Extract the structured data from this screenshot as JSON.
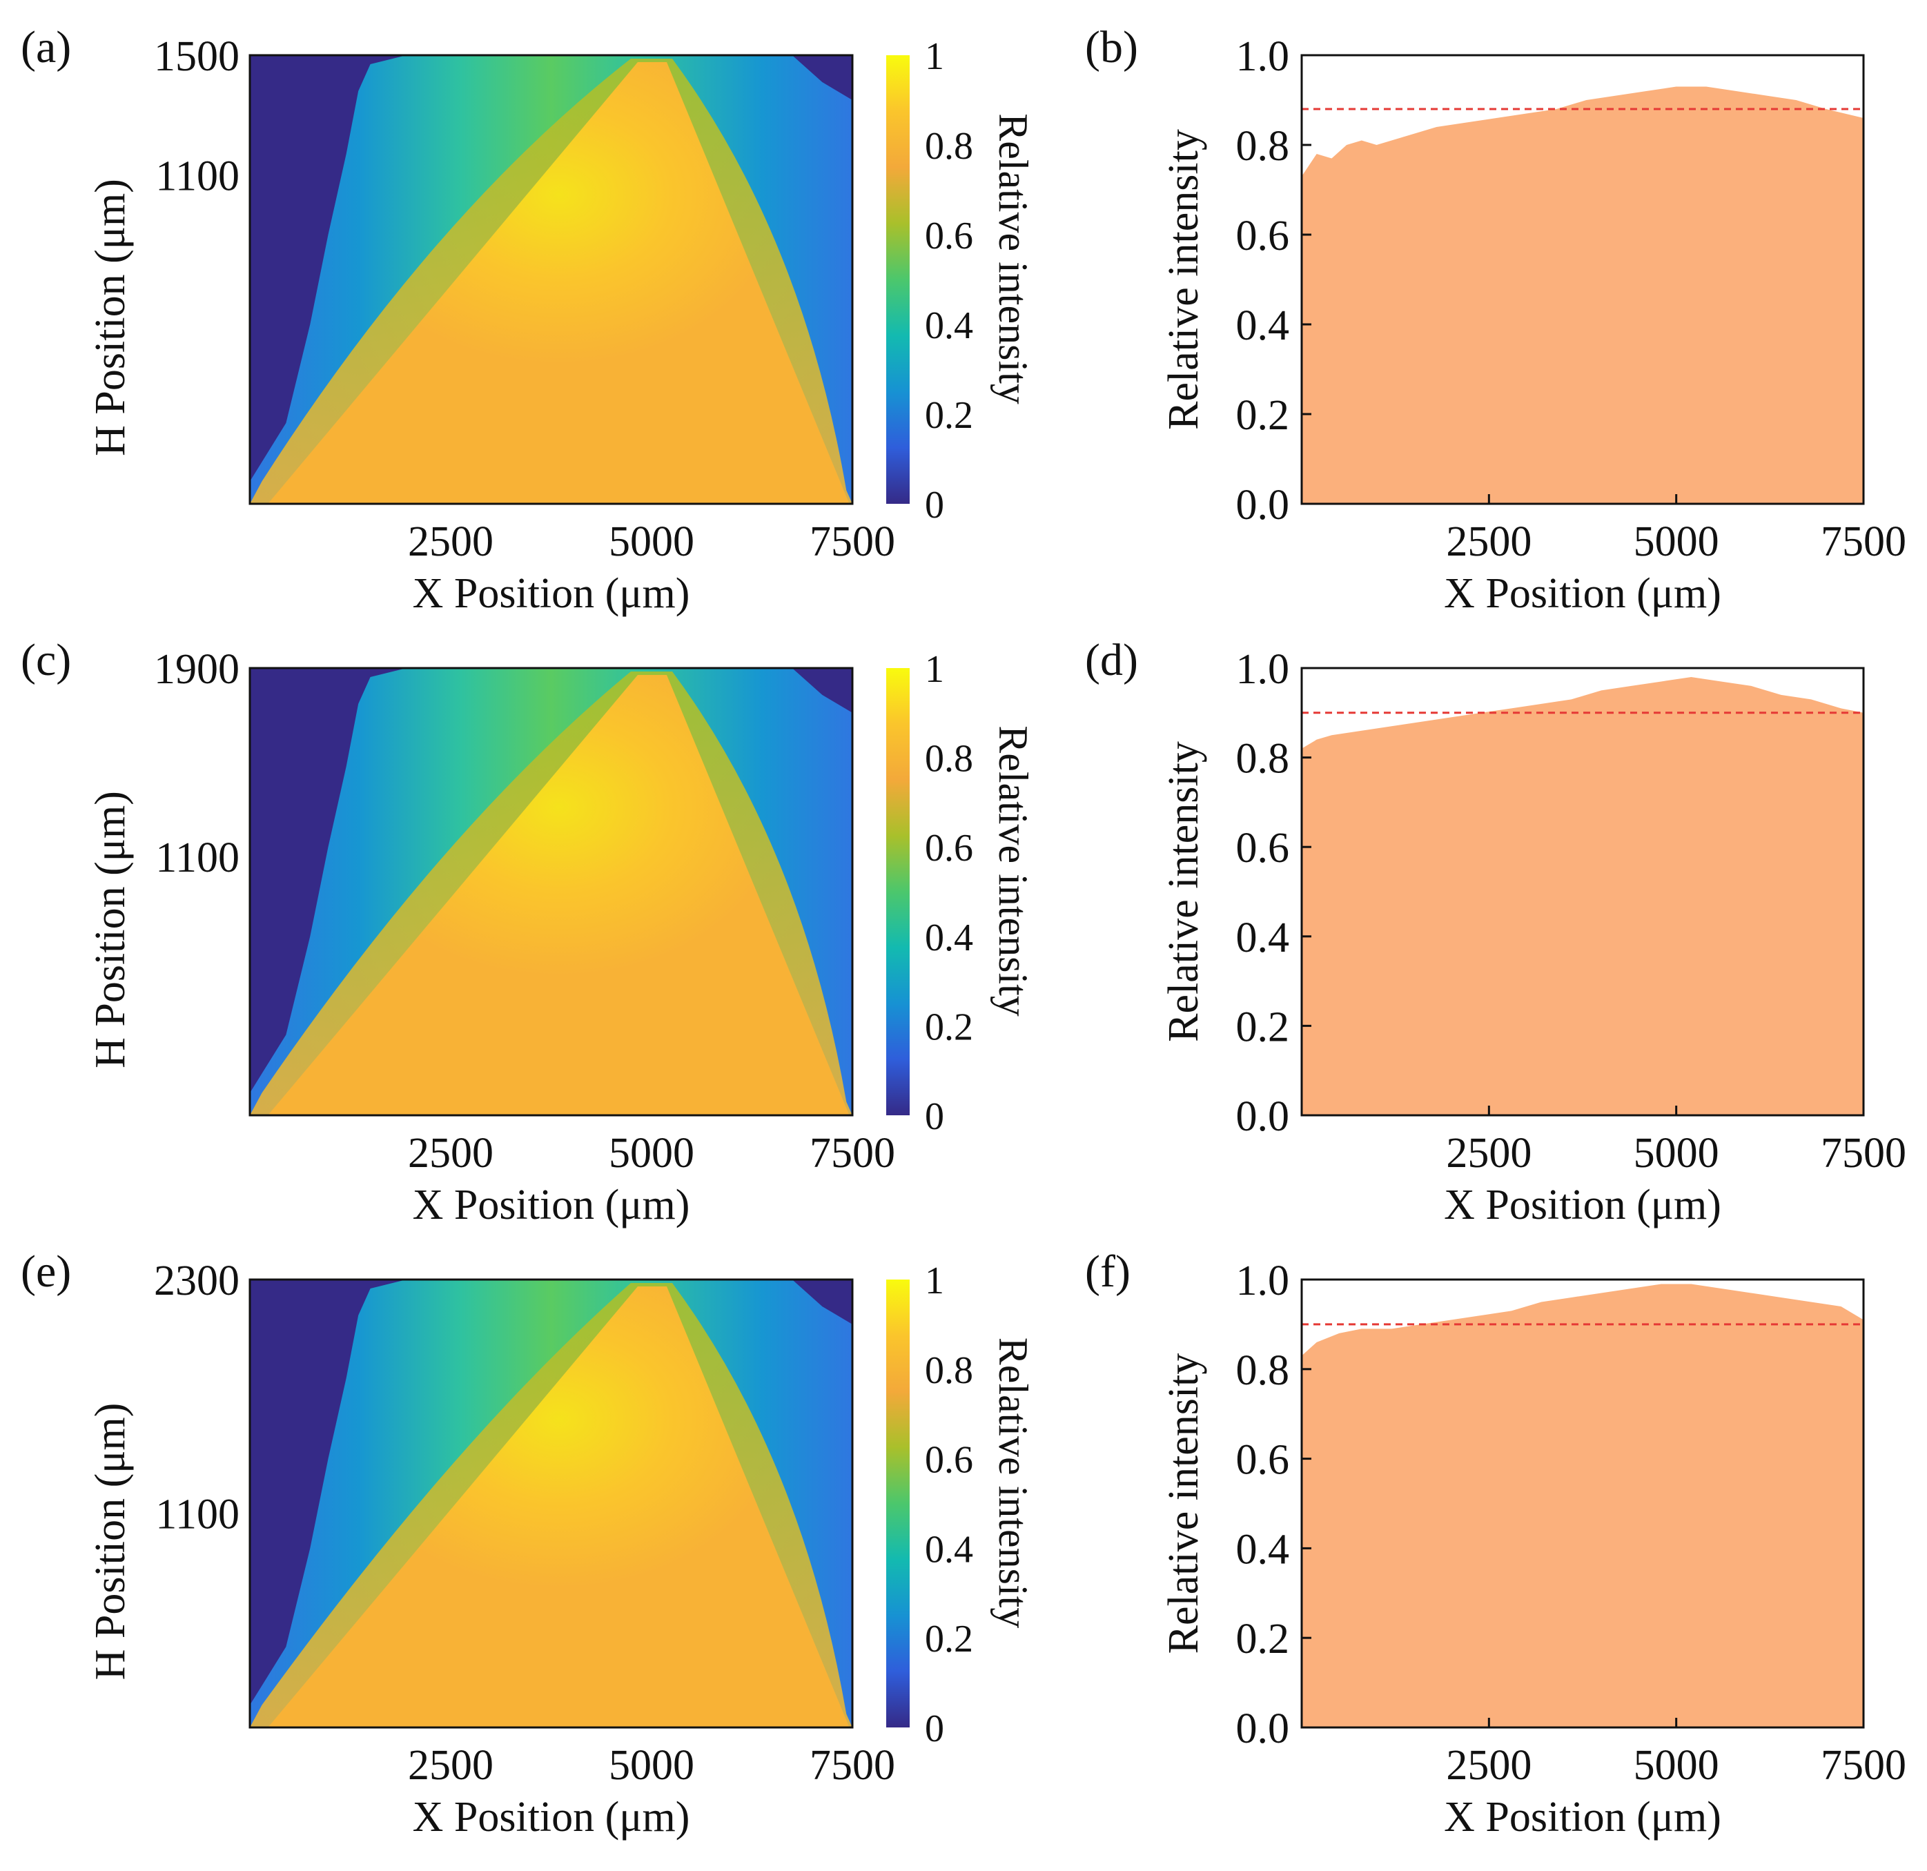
{
  "figure": {
    "colors": {
      "fill": "#FBB07C",
      "dashed": "#E53935",
      "axis": "#111111"
    }
  },
  "colormap": {
    "name": "parula",
    "stops": [
      "#352A87",
      "#2F5EDB",
      "#1792D3",
      "#13BAB0",
      "#4CC76C",
      "#A9C02B",
      "#F3A93A",
      "#FAC52C",
      "#F9FB0E"
    ]
  },
  "chart_data": [
    {
      "id": "a",
      "label": "(a)",
      "type": "heatmap",
      "xlabel": "X Position (μm)",
      "ylabel": "H Position (μm)",
      "x_range": [
        0,
        7500
      ],
      "y_range": [
        0,
        1500
      ],
      "x_ticks": [
        2500,
        5000,
        7500
      ],
      "x_tick_labels": [
        "2500",
        "5000",
        "7500"
      ],
      "y_ticks": [
        1500,
        1100
      ],
      "y_tick_labels": [
        "1500",
        "1100"
      ],
      "apex_x": 5000,
      "top_spread_fraction": 0.95,
      "colorbar": {
        "label": "Relative intensity",
        "range": [
          0,
          1
        ],
        "ticks": [
          0,
          0.2,
          0.4,
          0.6,
          0.8,
          1
        ],
        "tick_labels": [
          "0",
          "0.2",
          "0.4",
          "0.6",
          "0.8",
          "1"
        ]
      }
    },
    {
      "id": "b",
      "label": "(b)",
      "type": "area",
      "xlabel": "X Position (μm)",
      "ylabel": "Relative intensity",
      "xlim": [
        0,
        7500
      ],
      "ylim": [
        0,
        1.0
      ],
      "x_ticks": [
        2500,
        5000,
        7500
      ],
      "x_tick_labels": [
        "2500",
        "5000",
        "7500"
      ],
      "y_ticks": [
        0,
        0.2,
        0.4,
        0.6,
        0.8,
        1.0
      ],
      "y_tick_labels": [
        "0.0",
        "0.2",
        "0.4",
        "0.6",
        "0.8",
        "1.0"
      ],
      "x": [
        0,
        200,
        400,
        600,
        800,
        1000,
        1400,
        1800,
        2200,
        2600,
        3000,
        3400,
        3800,
        4200,
        4600,
        5000,
        5400,
        5800,
        6200,
        6600,
        7000,
        7500
      ],
      "values": [
        0.73,
        0.78,
        0.77,
        0.8,
        0.81,
        0.8,
        0.82,
        0.84,
        0.85,
        0.86,
        0.87,
        0.88,
        0.9,
        0.91,
        0.92,
        0.93,
        0.93,
        0.92,
        0.91,
        0.9,
        0.88,
        0.86
      ],
      "reference_line": 0.88
    },
    {
      "id": "c",
      "label": "(c)",
      "type": "heatmap",
      "xlabel": "X Position (μm)",
      "ylabel": "H Position (μm)",
      "x_range": [
        0,
        7500
      ],
      "y_range": [
        0,
        1900
      ],
      "x_ticks": [
        2500,
        5000,
        7500
      ],
      "x_tick_labels": [
        "2500",
        "5000",
        "7500"
      ],
      "y_ticks": [
        1900,
        1100
      ],
      "y_tick_labels": [
        "1900",
        "1100"
      ],
      "apex_x": 5000,
      "top_spread_fraction": 0.9,
      "colorbar": {
        "label": "Relative intensity",
        "range": [
          0,
          1
        ],
        "ticks": [
          0,
          0.2,
          0.4,
          0.6,
          0.8,
          1
        ],
        "tick_labels": [
          "0",
          "0.2",
          "0.4",
          "0.6",
          "0.8",
          "1"
        ]
      }
    },
    {
      "id": "d",
      "label": "(d)",
      "type": "area",
      "xlabel": "X Position (μm)",
      "ylabel": "Relative intensity",
      "xlim": [
        0,
        7500
      ],
      "ylim": [
        0,
        1.0
      ],
      "x_ticks": [
        2500,
        5000,
        7500
      ],
      "x_tick_labels": [
        "2500",
        "5000",
        "7500"
      ],
      "y_ticks": [
        0,
        0.2,
        0.4,
        0.6,
        0.8,
        1.0
      ],
      "y_tick_labels": [
        "0.0",
        "0.2",
        "0.4",
        "0.6",
        "0.8",
        "1.0"
      ],
      "x": [
        0,
        200,
        400,
        800,
        1200,
        1600,
        2000,
        2400,
        2800,
        3200,
        3600,
        4000,
        4400,
        4800,
        5200,
        5600,
        6000,
        6400,
        6800,
        7200,
        7500
      ],
      "values": [
        0.82,
        0.84,
        0.85,
        0.86,
        0.87,
        0.88,
        0.89,
        0.9,
        0.91,
        0.92,
        0.93,
        0.95,
        0.96,
        0.97,
        0.98,
        0.97,
        0.96,
        0.94,
        0.93,
        0.91,
        0.9
      ],
      "reference_line": 0.9
    },
    {
      "id": "e",
      "label": "(e)",
      "type": "heatmap",
      "xlabel": "X Position (μm)",
      "ylabel": "H Position (μm)",
      "x_range": [
        0,
        7500
      ],
      "y_range": [
        0,
        2300
      ],
      "x_ticks": [
        2500,
        5000,
        7500
      ],
      "x_tick_labels": [
        "2500",
        "5000",
        "7500"
      ],
      "y_ticks": [
        2300,
        1100
      ],
      "y_tick_labels": [
        "2300",
        "1100"
      ],
      "apex_x": 5000,
      "top_spread_fraction": 0.85,
      "colorbar": {
        "label": "Relative intensity",
        "range": [
          0,
          1
        ],
        "ticks": [
          0,
          0.2,
          0.4,
          0.6,
          0.8,
          1
        ],
        "tick_labels": [
          "0",
          "0.2",
          "0.4",
          "0.6",
          "0.8",
          "1"
        ]
      }
    },
    {
      "id": "f",
      "label": "(f)",
      "type": "area",
      "xlabel": "X Position (μm)",
      "ylabel": "Relative intensity",
      "xlim": [
        0,
        7500
      ],
      "ylim": [
        0,
        1.0
      ],
      "x_ticks": [
        2500,
        5000,
        7500
      ],
      "x_tick_labels": [
        "2500",
        "5000",
        "7500"
      ],
      "y_ticks": [
        0,
        0.2,
        0.4,
        0.6,
        0.8,
        1.0
      ],
      "y_tick_labels": [
        "0.0",
        "0.2",
        "0.4",
        "0.6",
        "0.8",
        "1.0"
      ],
      "x": [
        0,
        200,
        500,
        800,
        1200,
        1600,
        2000,
        2400,
        2800,
        3200,
        3600,
        4000,
        4400,
        4800,
        5200,
        5600,
        6000,
        6400,
        6800,
        7200,
        7500
      ],
      "values": [
        0.83,
        0.86,
        0.88,
        0.89,
        0.89,
        0.9,
        0.91,
        0.92,
        0.93,
        0.95,
        0.96,
        0.97,
        0.98,
        0.99,
        0.99,
        0.98,
        0.97,
        0.96,
        0.95,
        0.94,
        0.91
      ],
      "reference_line": 0.9
    }
  ]
}
